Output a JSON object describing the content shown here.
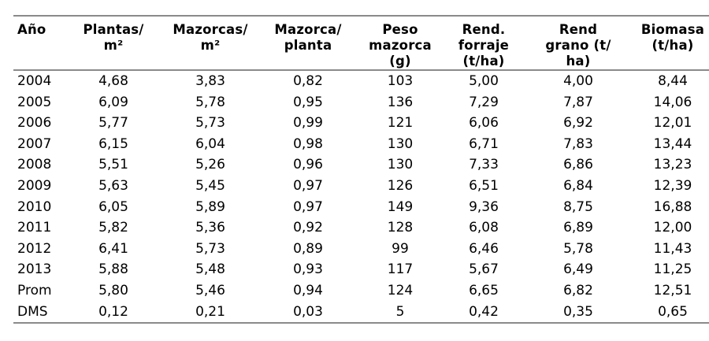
{
  "table": {
    "columns": [
      {
        "id": "ano",
        "label": "Año",
        "align": "left"
      },
      {
        "id": "plantas-m2",
        "label": "Plantas/\nm²",
        "align": "center"
      },
      {
        "id": "mazorcas-m2",
        "label": "Mazorcas/\nm²",
        "align": "center"
      },
      {
        "id": "mazorca-planta",
        "label": "Mazorca/\nplanta",
        "align": "center"
      },
      {
        "id": "peso-mazorca",
        "label": "Peso\nmazorca\n(g)",
        "align": "center"
      },
      {
        "id": "rend-forraje",
        "label": "Rend.\nforraje\n(t/ha)",
        "align": "center"
      },
      {
        "id": "rend-grano",
        "label": "Rend\ngrano (t/\nha)",
        "align": "center"
      },
      {
        "id": "biomasa",
        "label": "Biomasa\n(t/ha)",
        "align": "center"
      }
    ],
    "rows": [
      [
        "2004",
        "4,68",
        "3,83",
        "0,82",
        "103",
        "5,00",
        "4,00",
        "8,44"
      ],
      [
        "2005",
        "6,09",
        "5,78",
        "0,95",
        "136",
        "7,29",
        "7,87",
        "14,06"
      ],
      [
        "2006",
        "5,77",
        "5,73",
        "0,99",
        "121",
        "6,06",
        "6,92",
        "12,01"
      ],
      [
        "2007",
        "6,15",
        "6,04",
        "0,98",
        "130",
        "6,71",
        "7,83",
        "13,44"
      ],
      [
        "2008",
        "5,51",
        "5,26",
        "0,96",
        "130",
        "7,33",
        "6,86",
        "13,23"
      ],
      [
        "2009",
        "5,63",
        "5,45",
        "0,97",
        "126",
        "6,51",
        "6,84",
        "12,39"
      ],
      [
        "2010",
        "6,05",
        "5,89",
        "0,97",
        "149",
        "9,36",
        "8,75",
        "16,88"
      ],
      [
        "2011",
        "5,82",
        "5,36",
        "0,92",
        "128",
        "6,08",
        "6,89",
        "12,00"
      ],
      [
        "2012",
        "6,41",
        "5,73",
        "0,89",
        "99",
        "6,46",
        "5,78",
        "11,43"
      ],
      [
        "2013",
        "5,88",
        "5,48",
        "0,93",
        "117",
        "5,67",
        "6,49",
        "11,25"
      ],
      [
        "Prom",
        "5,80",
        "5,46",
        "0,94",
        "124",
        "6,65",
        "6,82",
        "12,51"
      ],
      [
        "DMS",
        "0,12",
        "0,21",
        "0,03",
        "5",
        "0,42",
        "0,35",
        "0,65"
      ]
    ],
    "colors": {
      "text": "#000000",
      "rule": "#8a8a8a",
      "background": "#ffffff"
    }
  }
}
